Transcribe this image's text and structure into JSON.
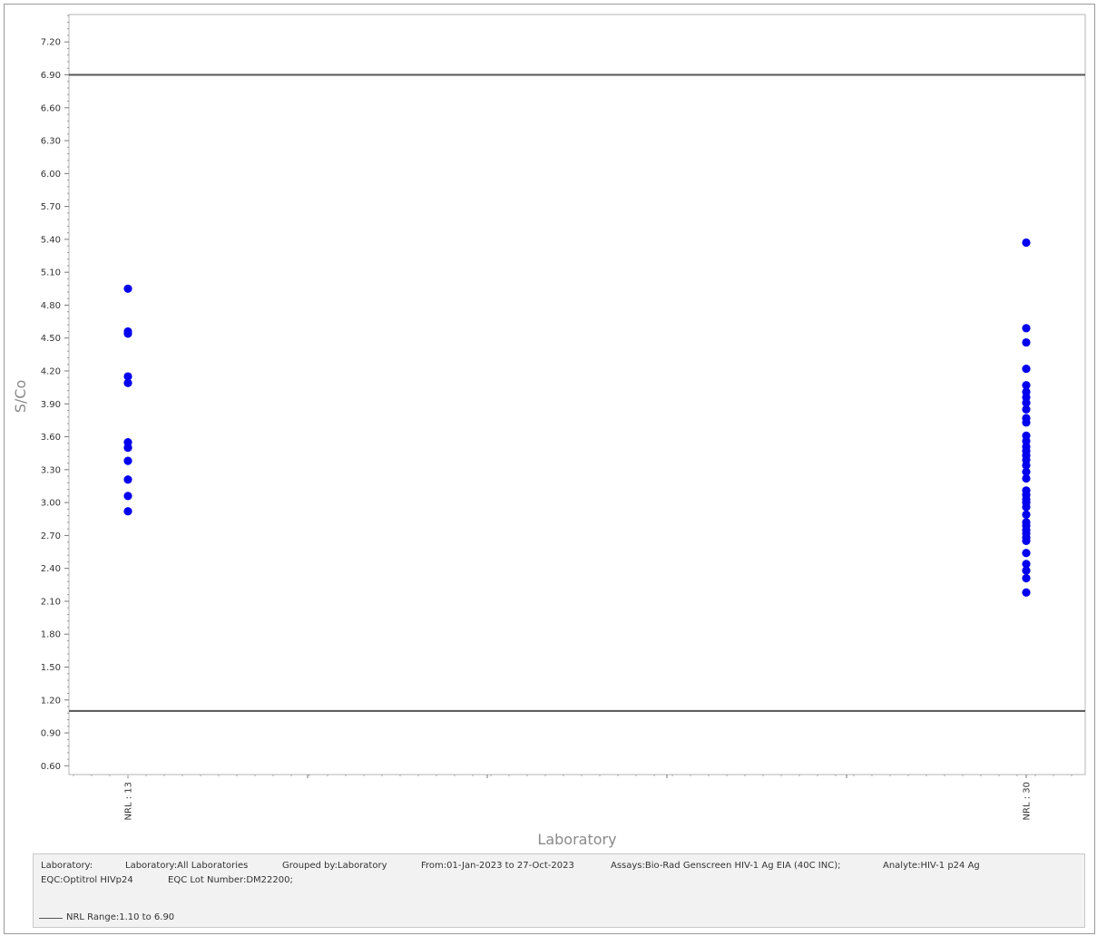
{
  "chart_data": {
    "type": "scatter",
    "xlabel": "Laboratory",
    "ylabel": "S/Co",
    "categories": [
      "NRL : 13",
      "NRL : 30"
    ],
    "yticks": [
      "0.60",
      "0.90",
      "1.20",
      "1.50",
      "1.80",
      "2.10",
      "2.40",
      "2.70",
      "3.00",
      "3.30",
      "3.60",
      "3.90",
      "4.20",
      "4.50",
      "4.80",
      "5.10",
      "5.40",
      "5.70",
      "6.00",
      "6.30",
      "6.60",
      "6.90",
      "7.20"
    ],
    "ylim": [
      0.52,
      7.45
    ],
    "reference_lines": [
      1.1,
      6.9
    ],
    "point_color": "#0000ee",
    "line_color": "#555555",
    "grid": false,
    "series": [
      {
        "values": {
          "NRL : 13": [
            4.95,
            4.56,
            4.54,
            4.15,
            4.09,
            3.55,
            3.5,
            3.38,
            3.21,
            3.06,
            2.92
          ],
          "NRL : 30": [
            5.37,
            4.59,
            4.46,
            4.22,
            4.07,
            4.01,
            3.96,
            3.91,
            3.85,
            3.77,
            3.73,
            3.61,
            3.56,
            3.51,
            3.47,
            3.43,
            3.39,
            3.34,
            3.28,
            3.22,
            3.11,
            3.07,
            3.03,
            3.0,
            2.96,
            2.89,
            2.82,
            2.79,
            2.75,
            2.72,
            2.68,
            2.65,
            2.54,
            2.44,
            2.38,
            2.31,
            2.18
          ]
        }
      }
    ]
  },
  "info": {
    "laboratory_label": "Laboratory:",
    "laboratory_value": "Laboratory:All Laboratories",
    "grouped_by": "Grouped by:Laboratory",
    "date_range": "From:01-Jan-2023 to 27-Oct-2023",
    "assays": "Assays:Bio-Rad Genscreen HIV-1 Ag EIA (40C INC);",
    "analyte": "Analyte:HIV-1 p24 Ag",
    "eqc": "EQC:Optitrol HIVp24",
    "eqc_lot": "EQC Lot Number:DM22200;",
    "legend_label": "NRL Range:1.10 to 6.90"
  }
}
